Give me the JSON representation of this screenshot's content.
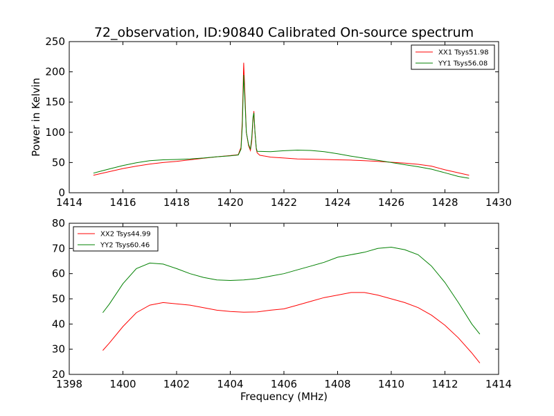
{
  "figure": {
    "title": "72_observation, ID:90840 Calibrated On-source spectrum",
    "ylabel": "Power in Kelvin",
    "xlabel": "Frequency (MHz)"
  },
  "chart_data": [
    {
      "type": "line",
      "title": "72_observation, ID:90840 Calibrated On-source spectrum",
      "xlabel": "",
      "ylabel": "Power in Kelvin",
      "xlim": [
        1414,
        1430
      ],
      "ylim": [
        0,
        250
      ],
      "xticks": [
        1414,
        1416,
        1418,
        1420,
        1422,
        1424,
        1426,
        1428,
        1430
      ],
      "yticks": [
        0,
        50,
        100,
        150,
        200,
        250
      ],
      "grid": false,
      "legend_position": "upper right",
      "series": [
        {
          "name": "XX1 Tsys51.98",
          "color": "#ff0000",
          "points": [
            [
              1414.9,
              29
            ],
            [
              1415.2,
              32
            ],
            [
              1415.5,
              35
            ],
            [
              1416.0,
              40
            ],
            [
              1416.5,
              44
            ],
            [
              1417.0,
              47.5
            ],
            [
              1417.5,
              50
            ],
            [
              1418.0,
              52
            ],
            [
              1418.5,
              54.5
            ],
            [
              1419.0,
              57
            ],
            [
              1419.5,
              59.5
            ],
            [
              1420.0,
              61.5
            ],
            [
              1420.3,
              63
            ],
            [
              1420.4,
              75
            ],
            [
              1420.45,
              120
            ],
            [
              1420.5,
              215
            ],
            [
              1420.55,
              160
            ],
            [
              1420.6,
              100
            ],
            [
              1420.68,
              78
            ],
            [
              1420.75,
              70
            ],
            [
              1420.8,
              85
            ],
            [
              1420.85,
              120
            ],
            [
              1420.88,
              135
            ],
            [
              1420.92,
              100
            ],
            [
              1420.97,
              72
            ],
            [
              1421.0,
              66
            ],
            [
              1421.1,
              62
            ],
            [
              1421.5,
              59
            ],
            [
              1422.0,
              57.5
            ],
            [
              1422.5,
              56
            ],
            [
              1423.0,
              55.5
            ],
            [
              1423.5,
              55
            ],
            [
              1424.0,
              54.5
            ],
            [
              1424.5,
              54
            ],
            [
              1425.0,
              53
            ],
            [
              1425.5,
              52
            ],
            [
              1426.0,
              50.5
            ],
            [
              1426.5,
              49
            ],
            [
              1427.0,
              47
            ],
            [
              1427.5,
              44
            ],
            [
              1428.0,
              38
            ],
            [
              1428.5,
              33
            ],
            [
              1428.9,
              29
            ]
          ]
        },
        {
          "name": "YY1 Tsys56.08",
          "color": "#008000",
          "points": [
            [
              1414.9,
              32.5
            ],
            [
              1415.2,
              36
            ],
            [
              1415.5,
              39.5
            ],
            [
              1416.0,
              45
            ],
            [
              1416.5,
              49.5
            ],
            [
              1417.0,
              53
            ],
            [
              1417.5,
              54.5
            ],
            [
              1418.0,
              55
            ],
            [
              1418.5,
              56
            ],
            [
              1419.0,
              57.5
            ],
            [
              1419.5,
              59.5
            ],
            [
              1420.0,
              61
            ],
            [
              1420.3,
              62.5
            ],
            [
              1420.4,
              72
            ],
            [
              1420.45,
              110
            ],
            [
              1420.5,
              195
            ],
            [
              1420.55,
              150
            ],
            [
              1420.6,
              100
            ],
            [
              1420.68,
              80
            ],
            [
              1420.75,
              72
            ],
            [
              1420.8,
              90
            ],
            [
              1420.85,
              125
            ],
            [
              1420.88,
              132
            ],
            [
              1420.92,
              100
            ],
            [
              1420.97,
              74
            ],
            [
              1421.0,
              68.5
            ],
            [
              1421.5,
              68
            ],
            [
              1422.0,
              69.5
            ],
            [
              1422.5,
              70.5
            ],
            [
              1423.0,
              70
            ],
            [
              1423.5,
              68
            ],
            [
              1424.0,
              64.5
            ],
            [
              1424.5,
              60.5
            ],
            [
              1425.0,
              57
            ],
            [
              1425.5,
              53.5
            ],
            [
              1426.0,
              50
            ],
            [
              1426.5,
              46.5
            ],
            [
              1427.0,
              43
            ],
            [
              1427.5,
              39
            ],
            [
              1428.0,
              33
            ],
            [
              1428.5,
              27
            ],
            [
              1428.9,
              24
            ]
          ]
        }
      ]
    },
    {
      "type": "line",
      "title": "",
      "xlabel": "Frequency (MHz)",
      "ylabel": "",
      "xlim": [
        1398,
        1414
      ],
      "ylim": [
        20,
        80
      ],
      "xticks": [
        1398,
        1400,
        1402,
        1404,
        1406,
        1408,
        1410,
        1412,
        1414
      ],
      "yticks": [
        20,
        30,
        40,
        50,
        60,
        70,
        80
      ],
      "grid": false,
      "legend_position": "upper left",
      "series": [
        {
          "name": "XX2 Tsys44.99",
          "color": "#ff0000",
          "points": [
            [
              1399.25,
              29.5
            ],
            [
              1399.5,
              32.5
            ],
            [
              1400.0,
              39
            ],
            [
              1400.5,
              44.5
            ],
            [
              1401.0,
              47.5
            ],
            [
              1401.5,
              48.5
            ],
            [
              1402.0,
              48
            ],
            [
              1402.5,
              47.5
            ],
            [
              1403.0,
              46.5
            ],
            [
              1403.5,
              45.5
            ],
            [
              1404.0,
              45
            ],
            [
              1404.5,
              44.7
            ],
            [
              1405.0,
              44.8
            ],
            [
              1405.5,
              45.5
            ],
            [
              1406.0,
              46
            ],
            [
              1406.5,
              47.5
            ],
            [
              1407.0,
              49
            ],
            [
              1407.5,
              50.5
            ],
            [
              1408.0,
              51.5
            ],
            [
              1408.5,
              52.5
            ],
            [
              1409.0,
              52.5
            ],
            [
              1409.5,
              51.5
            ],
            [
              1410.0,
              50
            ],
            [
              1410.5,
              48.5
            ],
            [
              1411.0,
              46.5
            ],
            [
              1411.5,
              43.5
            ],
            [
              1412.0,
              39.5
            ],
            [
              1412.5,
              34.5
            ],
            [
              1413.0,
              28.5
            ],
            [
              1413.3,
              24.5
            ]
          ]
        },
        {
          "name": "YY2 Tsys60.46",
          "color": "#008000",
          "points": [
            [
              1399.25,
              44.5
            ],
            [
              1399.5,
              48
            ],
            [
              1400.0,
              56
            ],
            [
              1400.5,
              62
            ],
            [
              1401.0,
              64.2
            ],
            [
              1401.5,
              63.8
            ],
            [
              1402.0,
              62
            ],
            [
              1402.5,
              60
            ],
            [
              1403.0,
              58.5
            ],
            [
              1403.5,
              57.5
            ],
            [
              1404.0,
              57.3
            ],
            [
              1404.5,
              57.5
            ],
            [
              1405.0,
              58
            ],
            [
              1405.5,
              59
            ],
            [
              1406.0,
              60
            ],
            [
              1406.5,
              61.5
            ],
            [
              1407.0,
              63
            ],
            [
              1407.5,
              64.5
            ],
            [
              1408.0,
              66.5
            ],
            [
              1408.5,
              67.5
            ],
            [
              1409.0,
              68.5
            ],
            [
              1409.5,
              70
            ],
            [
              1410.0,
              70.5
            ],
            [
              1410.5,
              69.5
            ],
            [
              1411.0,
              67.5
            ],
            [
              1411.5,
              63
            ],
            [
              1412.0,
              56.5
            ],
            [
              1412.5,
              48.5
            ],
            [
              1413.0,
              40
            ],
            [
              1413.3,
              36
            ]
          ]
        }
      ]
    }
  ]
}
